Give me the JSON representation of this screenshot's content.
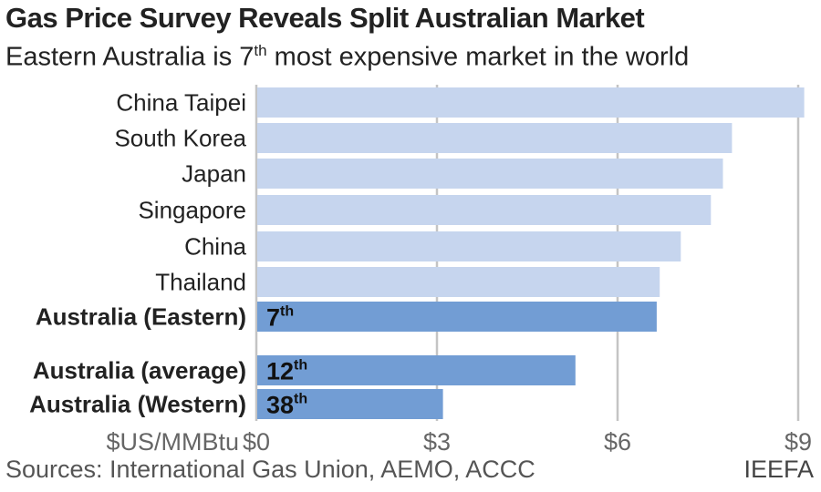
{
  "chart_data": {
    "type": "bar",
    "orientation": "horizontal",
    "title": "Gas Price Survey Reveals Split Australian Market",
    "subtitle_main": "Eastern Australia is 7",
    "subtitle_sup": "th",
    "subtitle_rest": " most expensive market in the world",
    "xlabel": "$US/MMBtu",
    "xlim": [
      0,
      9
    ],
    "xticks": [
      0,
      3,
      6,
      9
    ],
    "xtick_labels": [
      "$0",
      "$3",
      "$6",
      "$9"
    ],
    "grid": "vertical",
    "categories": [
      "China Taipei",
      "South Korea",
      "Japan",
      "Singapore",
      "China",
      "Thailand",
      "Australia (Eastern)",
      "Australia (average)",
      "Australia (Western)"
    ],
    "values": [
      9.1,
      7.9,
      7.75,
      7.55,
      7.05,
      6.7,
      6.65,
      5.3,
      3.1
    ],
    "highlight": [
      false,
      false,
      false,
      false,
      false,
      false,
      true,
      true,
      true
    ],
    "rank_labels": [
      "",
      "",
      "",
      "",
      "",
      "",
      "7",
      "12",
      "38"
    ],
    "rank_suffix": "th",
    "colors": {
      "bar": "#c6d5ee",
      "highlight": "#729dd4",
      "grid": "#c4c4c4"
    }
  },
  "footer": {
    "sources": "Sources: International Gas Union, AEMO, ACCC",
    "brand": "IEEFA"
  }
}
